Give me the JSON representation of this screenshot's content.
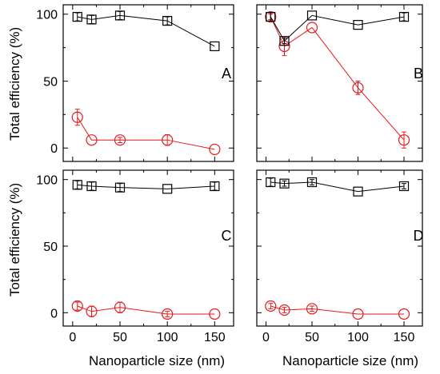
{
  "figure": {
    "ylabel": "Total efficiency (%)",
    "xlabel": "Nanoparticle size (nm)"
  },
  "colors": {
    "square_series": "#000000",
    "circle_series": "#e8191c"
  },
  "chart_data": [
    {
      "type": "line",
      "panel_label": "A",
      "xlim": [
        -10,
        170
      ],
      "ylim": [
        -10,
        107
      ],
      "xticks": [
        "0",
        "50",
        "100",
        "150"
      ],
      "yticks": [
        "0",
        "50",
        "100"
      ],
      "show_xticklabels": false,
      "show_yticklabels": true,
      "x": [
        5,
        20,
        50,
        100,
        150
      ],
      "series": [
        {
          "marker": "square",
          "values": [
            98,
            96,
            99,
            95,
            76
          ],
          "errors": [
            3,
            3,
            3,
            3,
            0
          ]
        },
        {
          "marker": "circle",
          "values": [
            23,
            6,
            6,
            6,
            -1
          ],
          "errors": [
            6,
            0,
            2,
            4,
            0
          ]
        }
      ]
    },
    {
      "type": "line",
      "panel_label": "B",
      "xlim": [
        -10,
        170
      ],
      "ylim": [
        -10,
        107
      ],
      "xticks": [
        "0",
        "50",
        "100",
        "150"
      ],
      "yticks": [
        "0",
        "50",
        "100"
      ],
      "show_xticklabels": false,
      "show_yticklabels": false,
      "x": [
        5,
        20,
        50,
        100,
        150
      ],
      "series": [
        {
          "marker": "square",
          "values": [
            98,
            80,
            99,
            92,
            98
          ],
          "errors": [
            3,
            2,
            0,
            0,
            3
          ]
        },
        {
          "marker": "circle",
          "values": [
            98,
            76,
            90,
            45,
            6
          ],
          "errors": [
            2,
            7,
            0,
            5,
            6
          ]
        }
      ]
    },
    {
      "type": "line",
      "panel_label": "C",
      "xlim": [
        -10,
        170
      ],
      "ylim": [
        -10,
        107
      ],
      "xticks": [
        "0",
        "50",
        "100",
        "150"
      ],
      "yticks": [
        "0",
        "50",
        "100"
      ],
      "show_xticklabels": true,
      "show_yticklabels": true,
      "x": [
        5,
        20,
        50,
        100,
        150
      ],
      "series": [
        {
          "marker": "square",
          "values": [
            96,
            95,
            94,
            93,
            95
          ],
          "errors": [
            3,
            3,
            3,
            0,
            3
          ]
        },
        {
          "marker": "circle",
          "values": [
            5,
            1,
            4,
            -1,
            -1
          ],
          "errors": [
            3,
            4,
            4,
            2,
            0
          ]
        }
      ]
    },
    {
      "type": "line",
      "panel_label": "D",
      "xlim": [
        -10,
        170
      ],
      "ylim": [
        -10,
        107
      ],
      "xticks": [
        "0",
        "50",
        "100",
        "150"
      ],
      "yticks": [
        "0",
        "50",
        "100"
      ],
      "show_xticklabels": true,
      "show_yticklabels": false,
      "x": [
        5,
        20,
        50,
        100,
        150
      ],
      "series": [
        {
          "marker": "square",
          "values": [
            98,
            97,
            98,
            91,
            95
          ],
          "errors": [
            3,
            2,
            2,
            0,
            2
          ]
        },
        {
          "marker": "circle",
          "values": [
            5,
            2,
            3,
            -1,
            -1
          ],
          "errors": [
            2,
            2,
            2,
            0,
            0
          ]
        }
      ]
    }
  ]
}
